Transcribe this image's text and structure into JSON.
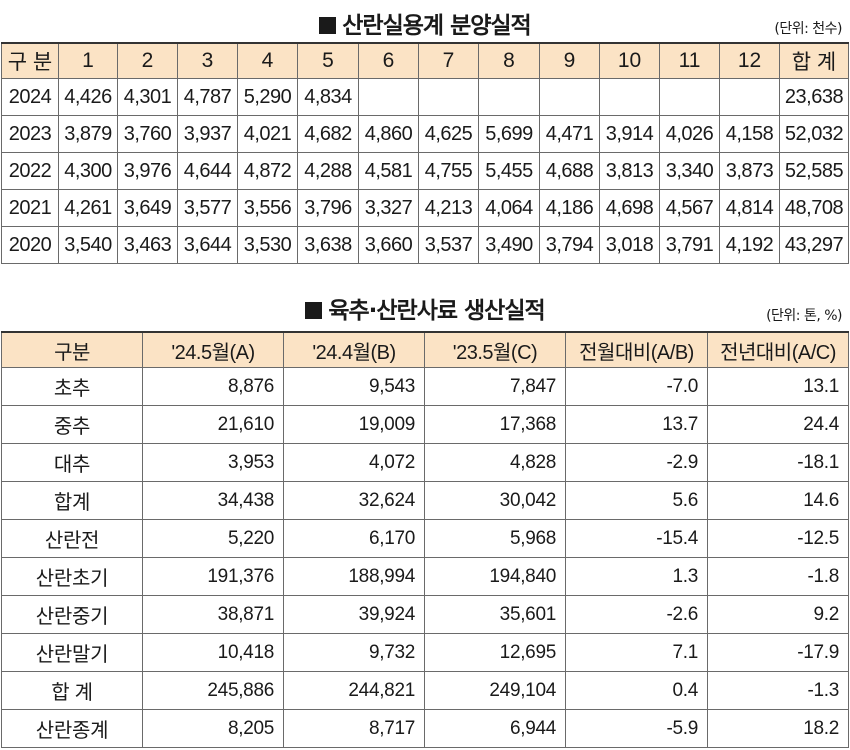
{
  "table1": {
    "title": "산란실용계 분양실적",
    "unit": "(단위: 천수)",
    "headers": [
      "구 분",
      "1",
      "2",
      "3",
      "4",
      "5",
      "6",
      "7",
      "8",
      "9",
      "10",
      "11",
      "12",
      "합 계"
    ],
    "rows": [
      [
        "2024",
        "4,426",
        "4,301",
        "4,787",
        "5,290",
        "4,834",
        "",
        "",
        "",
        "",
        "",
        "",
        "",
        "23,638"
      ],
      [
        "2023",
        "3,879",
        "3,760",
        "3,937",
        "4,021",
        "4,682",
        "4,860",
        "4,625",
        "5,699",
        "4,471",
        "3,914",
        "4,026",
        "4,158",
        "52,032"
      ],
      [
        "2022",
        "4,300",
        "3,976",
        "4,644",
        "4,872",
        "4,288",
        "4,581",
        "4,755",
        "5,455",
        "4,688",
        "3,813",
        "3,340",
        "3,873",
        "52,585"
      ],
      [
        "2021",
        "4,261",
        "3,649",
        "3,577",
        "3,556",
        "3,796",
        "3,327",
        "4,213",
        "4,064",
        "4,186",
        "4,698",
        "4,567",
        "4,814",
        "48,708"
      ],
      [
        "2020",
        "3,540",
        "3,463",
        "3,644",
        "3,530",
        "3,638",
        "3,660",
        "3,537",
        "3,490",
        "3,794",
        "3,018",
        "3,791",
        "4,192",
        "43,297"
      ]
    ]
  },
  "table2": {
    "title": "육추·산란사료 생산실적",
    "unit": "(단위: 톤, %)",
    "headers": [
      "구분",
      "'24.5월(A)",
      "'24.4월(B)",
      "'23.5월(C)",
      "전월대비(A/B)",
      "전년대비(A/C)"
    ],
    "rows": [
      [
        "초추",
        "8,876",
        "9,543",
        "7,847",
        "-7.0",
        "13.1"
      ],
      [
        "중추",
        "21,610",
        "19,009",
        "17,368",
        "13.7",
        "24.4"
      ],
      [
        "대추",
        "3,953",
        "4,072",
        "4,828",
        "-2.9",
        "-18.1"
      ],
      [
        "합계",
        "34,438",
        "32,624",
        "30,042",
        "5.6",
        "14.6"
      ],
      [
        "산란전",
        "5,220",
        "6,170",
        "5,968",
        "-15.4",
        "-12.5"
      ],
      [
        "산란초기",
        "191,376",
        "188,994",
        "194,840",
        "1.3",
        "-1.8"
      ],
      [
        "산란중기",
        "38,871",
        "39,924",
        "35,601",
        "-2.6",
        "9.2"
      ],
      [
        "산란말기",
        "10,418",
        "9,732",
        "12,695",
        "7.1",
        "-17.9"
      ],
      [
        "합 계",
        "245,886",
        "244,821",
        "249,104",
        "0.4",
        "-1.3"
      ],
      [
        "산란종계",
        "8,205",
        "8,717",
        "6,944",
        "-5.9",
        "18.2"
      ]
    ]
  }
}
